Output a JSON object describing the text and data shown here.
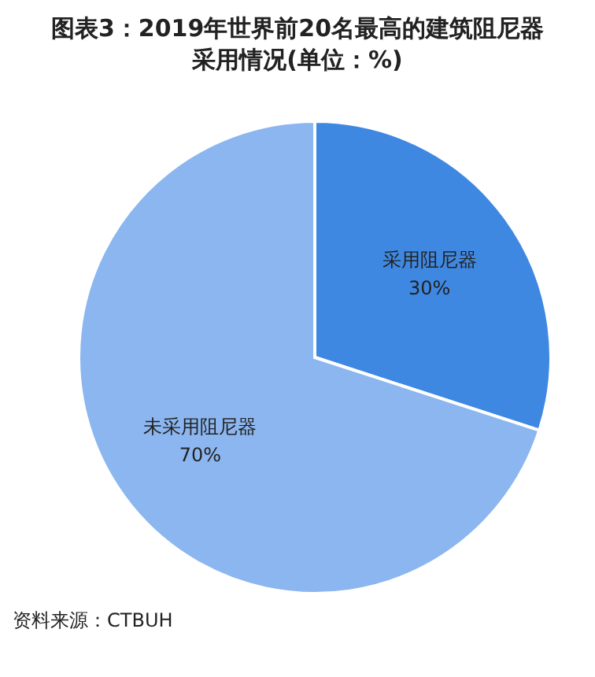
{
  "chart_data": {
    "type": "pie",
    "title": "图表3：2019年世界前20名最高的建筑阻尼器采用情况(单位：%)",
    "categories": [
      "采用阻尼器",
      "未采用阻尼器"
    ],
    "values": [
      30,
      70
    ],
    "colors": [
      "#3f88e2",
      "#8cb6ef"
    ],
    "value_labels": [
      "30%",
      "70%"
    ],
    "annotations": [
      "资料来源：CTBUH"
    ]
  }
}
